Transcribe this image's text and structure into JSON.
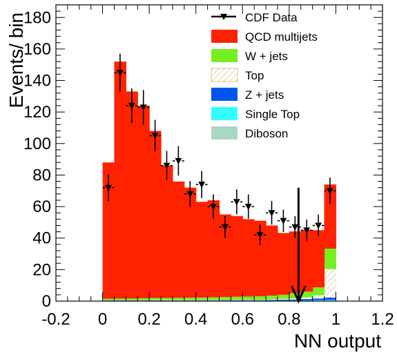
{
  "chart_data": {
    "type": "bar",
    "stacked": true,
    "xlabel": "NN output",
    "ylabel": "Events/ bin",
    "xlim": [
      -0.2,
      1.2
    ],
    "ylim": [
      0,
      188
    ],
    "x_ticks": [
      -0.2,
      0,
      0.2,
      0.4,
      0.6,
      0.8,
      1,
      1.2
    ],
    "x_tick_labels": [
      "-0.2",
      "0",
      "0.2",
      "0.4",
      "0.6",
      "0.8",
      "1",
      "1.2"
    ],
    "y_ticks": [
      0,
      20,
      40,
      60,
      80,
      100,
      120,
      140,
      160,
      180
    ],
    "y_tick_labels": [
      "0",
      "20",
      "40",
      "60",
      "80",
      "100",
      "120",
      "140",
      "160",
      "180"
    ],
    "bin_edges": [
      0,
      0.05,
      0.1,
      0.15,
      0.2,
      0.25,
      0.3,
      0.35,
      0.4,
      0.45,
      0.5,
      0.55,
      0.6,
      0.65,
      0.7,
      0.75,
      0.8,
      0.85,
      0.9,
      0.95,
      1.0
    ],
    "legend_position": "top-right",
    "series": [
      {
        "name": "Diboson",
        "color": "#a8d8c0",
        "values": [
          0.2,
          0.2,
          0.2,
          0.2,
          0.2,
          0.2,
          0.2,
          0.2,
          0.2,
          0.2,
          0.2,
          0.2,
          0.2,
          0.2,
          0.2,
          0.2,
          0.2,
          0.2,
          0.3,
          0.3
        ]
      },
      {
        "name": "Single Top",
        "color": "#33ffff",
        "values": [
          0.1,
          0.1,
          0.1,
          0.1,
          0.1,
          0.1,
          0.1,
          0.1,
          0.1,
          0.1,
          0.1,
          0.1,
          0.1,
          0.1,
          0.2,
          0.2,
          0.2,
          0.3,
          0.4,
          0.5
        ]
      },
      {
        "name": "Z + jets",
        "color": "#0055ee",
        "values": [
          0.2,
          0.2,
          0.2,
          0.2,
          0.2,
          0.2,
          0.2,
          0.2,
          0.2,
          0.2,
          0.3,
          0.3,
          0.3,
          0.3,
          0.4,
          0.5,
          0.6,
          0.8,
          1.0,
          1.5
        ]
      },
      {
        "name": "Top",
        "color": "#e6c389",
        "hatched": true,
        "values": [
          0.1,
          0.1,
          0.1,
          0.1,
          0.2,
          0.2,
          0.2,
          0.2,
          0.2,
          0.2,
          0.2,
          0.3,
          0.3,
          0.3,
          0.4,
          0.5,
          0.7,
          1.0,
          2.0,
          18.0
        ]
      },
      {
        "name": "W + jets",
        "color": "#77ee22",
        "values": [
          0.9,
          1.0,
          1.1,
          1.2,
          1.3,
          1.3,
          1.4,
          1.5,
          1.6,
          1.7,
          1.8,
          1.9,
          2.0,
          2.2,
          2.3,
          2.6,
          3.3,
          3.7,
          5.0,
          13.0
        ]
      },
      {
        "name": "QCD multijets",
        "color": "#ff2200",
        "values": [
          86.5,
          150.4,
          131.3,
          122.2,
          106.0,
          84.0,
          73.8,
          69.8,
          60.7,
          61.6,
          52.4,
          51.2,
          49.1,
          47.9,
          44.5,
          39.2,
          39.2,
          39.2,
          36.3,
          40.7
        ]
      }
    ],
    "data_points": {
      "name": "CDF Data",
      "x": [
        0.025,
        0.075,
        0.125,
        0.175,
        0.225,
        0.275,
        0.325,
        0.375,
        0.425,
        0.475,
        0.525,
        0.575,
        0.625,
        0.675,
        0.725,
        0.775,
        0.825,
        0.875,
        0.925,
        0.975
      ],
      "y": [
        72,
        145,
        124,
        123,
        105,
        86,
        89,
        68,
        74,
        60,
        47,
        63,
        60,
        42,
        56,
        51,
        47,
        45,
        48,
        70
      ],
      "err": [
        8.5,
        12,
        11,
        11,
        10,
        9.3,
        9.4,
        8.2,
        8.6,
        7.7,
        6.9,
        7.9,
        7.7,
        6.5,
        7.5,
        7.1,
        6.9,
        6.7,
        6.9,
        8.4
      ]
    },
    "cut_arrow": {
      "x": 0.84,
      "y_top": 72,
      "y_bottom": 0
    }
  }
}
